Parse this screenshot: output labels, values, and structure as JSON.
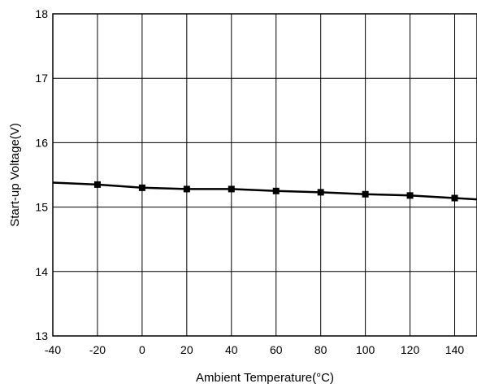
{
  "chart_data": {
    "type": "line",
    "xlabel": "Ambient Temperature(°C)",
    "ylabel": "Start-up Voltage(V)",
    "xlim": [
      -40,
      150
    ],
    "ylim": [
      13,
      18
    ],
    "x_ticks": [
      -40,
      -20,
      0,
      20,
      40,
      60,
      80,
      100,
      120,
      140
    ],
    "x_tick_labels": [
      "-40",
      "-20",
      "0",
      "20",
      "40",
      "60",
      "80",
      "100",
      "120",
      "140"
    ],
    "y_ticks": [
      13,
      14,
      15,
      16,
      17,
      18
    ],
    "y_tick_labels": [
      "13",
      "14",
      "15",
      "16",
      "17",
      "18"
    ],
    "grid": true,
    "series": [
      {
        "x": [
          -40,
          -20,
          0,
          20,
          40,
          60,
          80,
          100,
          120,
          140,
          150
        ],
        "y": [
          15.38,
          15.35,
          15.3,
          15.28,
          15.28,
          15.25,
          15.23,
          15.2,
          15.18,
          15.14,
          15.12
        ],
        "marker_x": [
          -20,
          0,
          20,
          40,
          60,
          80,
          100,
          120,
          140
        ],
        "marker_y": [
          15.35,
          15.3,
          15.28,
          15.28,
          15.25,
          15.23,
          15.2,
          15.18,
          15.14
        ],
        "color": "#000000",
        "marker": "square"
      }
    ]
  }
}
